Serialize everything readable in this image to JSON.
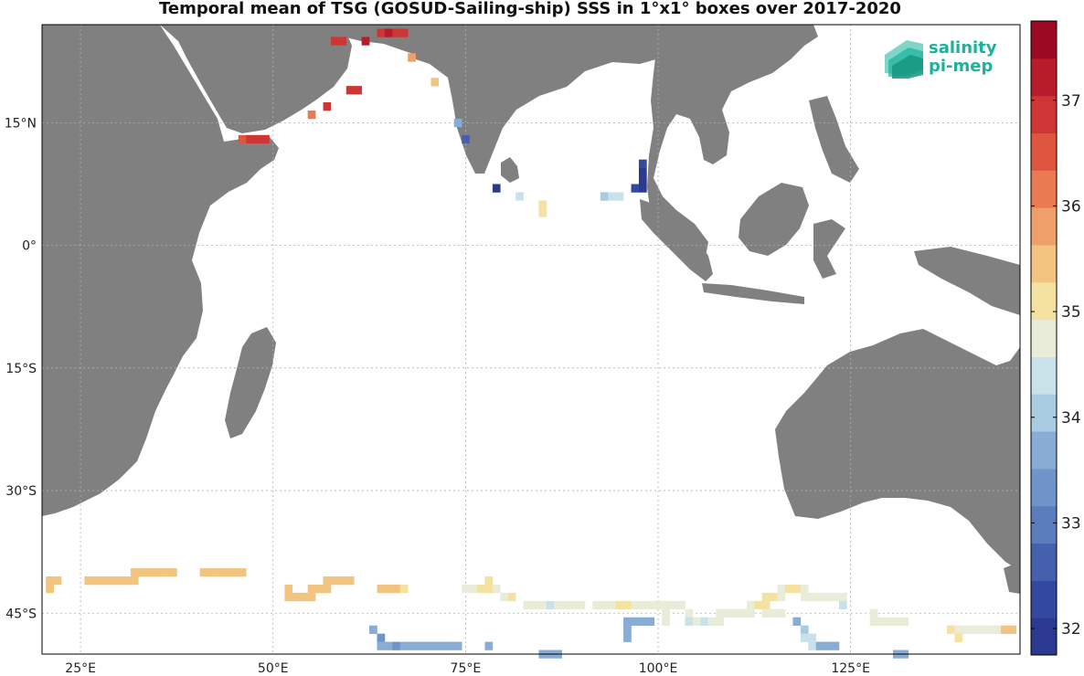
{
  "title": "Temporal mean of TSG (GOSUD-Sailing-ship) SSS in 1°x1° boxes over 2017-2020",
  "logo": {
    "line1": "salinity",
    "line2": "pi-mep",
    "color": "#1ab39a"
  },
  "axes": {
    "lon_range": [
      20,
      147
    ],
    "lat_range": [
      -50,
      27
    ],
    "x_ticks": [
      {
        "value": 25,
        "label": "25°E"
      },
      {
        "value": 50,
        "label": "50°E"
      },
      {
        "value": 75,
        "label": "75°E"
      },
      {
        "value": 100,
        "label": "100°E"
      },
      {
        "value": 125,
        "label": "125°E"
      }
    ],
    "y_ticks": [
      {
        "value": 15,
        "label": "15°N"
      },
      {
        "value": 0,
        "label": "0°"
      },
      {
        "value": -15,
        "label": "15°S"
      },
      {
        "value": -30,
        "label": "30°S"
      },
      {
        "value": -45,
        "label": "45°S"
      }
    ],
    "grid": true
  },
  "colorbar": {
    "min": 31.75,
    "max": 37.75,
    "ticks": [
      32,
      33,
      34,
      35,
      36,
      37
    ],
    "colors": [
      "#2b3990",
      "#3348a0",
      "#4561ad",
      "#5b7dbd",
      "#6e94c9",
      "#88acd4",
      "#a9cbe1",
      "#c9e2ea",
      "#e8ecd8",
      "#f5e2a0",
      "#f3c47f",
      "#ef9f6a",
      "#e97a51",
      "#de5640",
      "#cd3634",
      "#b71c2a",
      "#9b0a22"
    ]
  },
  "land_color": "#808080",
  "chart_data": {
    "type": "heatmap",
    "title": "Temporal mean of TSG (GOSUD-Sailing-ship) SSS in 1°x1° boxes over 2017-2020",
    "variable": "SSS",
    "xlabel": "",
    "ylabel": "",
    "xlim": [
      20,
      147
    ],
    "ylim": [
      -50,
      27
    ],
    "colorbar_range": [
      31.75,
      37.75
    ],
    "cells": [
      {
        "lon": 58,
        "lat": 25,
        "v": 37.0
      },
      {
        "lon": 59,
        "lat": 25,
        "v": 37.0
      },
      {
        "lon": 62,
        "lat": 25,
        "v": 37.1
      },
      {
        "lon": 64,
        "lat": 26,
        "v": 37.0
      },
      {
        "lon": 65,
        "lat": 26,
        "v": 37.1
      },
      {
        "lon": 66,
        "lat": 26,
        "v": 37.0
      },
      {
        "lon": 67,
        "lat": 26,
        "v": 37.0
      },
      {
        "lon": 60,
        "lat": 19,
        "v": 37.0
      },
      {
        "lon": 61,
        "lat": 19,
        "v": 37.0
      },
      {
        "lon": 57,
        "lat": 17,
        "v": 36.8
      },
      {
        "lon": 55,
        "lat": 16,
        "v": 36.3
      },
      {
        "lon": 46,
        "lat": 13,
        "v": 36.6
      },
      {
        "lon": 47,
        "lat": 13,
        "v": 36.7
      },
      {
        "lon": 48,
        "lat": 13,
        "v": 36.7
      },
      {
        "lon": 49,
        "lat": 13,
        "v": 36.8
      },
      {
        "lon": 68,
        "lat": 23,
        "v": 35.7
      },
      {
        "lon": 71,
        "lat": 20,
        "v": 35.3
      },
      {
        "lon": 74,
        "lat": 15,
        "v": 33.8
      },
      {
        "lon": 75,
        "lat": 13,
        "v": 32.7
      },
      {
        "lon": 79,
        "lat": 7,
        "v": 32.0
      },
      {
        "lon": 82,
        "lat": 6,
        "v": 34.3
      },
      {
        "lon": 85,
        "lat": 5,
        "v": 35.0
      },
      {
        "lon": 85,
        "lat": 4,
        "v": 35.1
      },
      {
        "lon": 93,
        "lat": 6,
        "v": 34.2
      },
      {
        "lon": 94,
        "lat": 6,
        "v": 34.4
      },
      {
        "lon": 95,
        "lat": 6,
        "v": 34.5
      },
      {
        "lon": 97,
        "lat": 7,
        "v": 32.3
      },
      {
        "lon": 98,
        "lat": 7,
        "v": 32.1
      },
      {
        "lon": 98,
        "lat": 8,
        "v": 32.0
      },
      {
        "lon": 98,
        "lat": 9,
        "v": 32.1
      },
      {
        "lon": 98,
        "lat": 10,
        "v": 32.2
      },
      {
        "lon": 21,
        "lat": -41,
        "v": 35.5
      },
      {
        "lon": 22,
        "lat": -41,
        "v": 35.5
      },
      {
        "lon": 21,
        "lat": -42,
        "v": 35.3
      },
      {
        "lon": 26,
        "lat": -41,
        "v": 35.6
      },
      {
        "lon": 27,
        "lat": -41,
        "v": 35.6
      },
      {
        "lon": 28,
        "lat": -41,
        "v": 35.6
      },
      {
        "lon": 29,
        "lat": -41,
        "v": 35.6
      },
      {
        "lon": 30,
        "lat": -41,
        "v": 35.5
      },
      {
        "lon": 31,
        "lat": -41,
        "v": 35.5
      },
      {
        "lon": 32,
        "lat": -41,
        "v": 35.5
      },
      {
        "lon": 32,
        "lat": -40,
        "v": 35.5
      },
      {
        "lon": 33,
        "lat": -40,
        "v": 35.4
      },
      {
        "lon": 34,
        "lat": -40,
        "v": 35.4
      },
      {
        "lon": 35,
        "lat": -40,
        "v": 35.6
      },
      {
        "lon": 36,
        "lat": -40,
        "v": 35.5
      },
      {
        "lon": 37,
        "lat": -40,
        "v": 35.4
      },
      {
        "lon": 41,
        "lat": -40,
        "v": 35.3
      },
      {
        "lon": 42,
        "lat": -40,
        "v": 35.4
      },
      {
        "lon": 43,
        "lat": -40,
        "v": 35.5
      },
      {
        "lon": 44,
        "lat": -40,
        "v": 35.6
      },
      {
        "lon": 45,
        "lat": -40,
        "v": 35.4
      },
      {
        "lon": 46,
        "lat": -40,
        "v": 35.3
      },
      {
        "lon": 52,
        "lat": -42,
        "v": 35.3
      },
      {
        "lon": 52,
        "lat": -43,
        "v": 35.4
      },
      {
        "lon": 53,
        "lat": -43,
        "v": 35.5
      },
      {
        "lon": 54,
        "lat": -43,
        "v": 35.4
      },
      {
        "lon": 55,
        "lat": -43,
        "v": 35.3
      },
      {
        "lon": 55,
        "lat": -42,
        "v": 35.5
      },
      {
        "lon": 56,
        "lat": -42,
        "v": 35.4
      },
      {
        "lon": 57,
        "lat": -42,
        "v": 35.3
      },
      {
        "lon": 57,
        "lat": -41,
        "v": 35.3
      },
      {
        "lon": 58,
        "lat": -41,
        "v": 35.4
      },
      {
        "lon": 59,
        "lat": -41,
        "v": 35.5
      },
      {
        "lon": 60,
        "lat": -41,
        "v": 35.3
      },
      {
        "lon": 64,
        "lat": -42,
        "v": 35.6
      },
      {
        "lon": 65,
        "lat": -42,
        "v": 35.4
      },
      {
        "lon": 66,
        "lat": -42,
        "v": 35.3
      },
      {
        "lon": 67,
        "lat": -42,
        "v": 35.1
      },
      {
        "lon": 75,
        "lat": -42,
        "v": 34.9
      },
      {
        "lon": 76,
        "lat": -42,
        "v": 34.9
      },
      {
        "lon": 77,
        "lat": -42,
        "v": 35.0
      },
      {
        "lon": 78,
        "lat": -42,
        "v": 35.0
      },
      {
        "lon": 78,
        "lat": -41,
        "v": 35.0
      },
      {
        "lon": 79,
        "lat": -42,
        "v": 34.9
      },
      {
        "lon": 80,
        "lat": -43,
        "v": 34.9
      },
      {
        "lon": 81,
        "lat": -43,
        "v": 35.0
      },
      {
        "lon": 83,
        "lat": -44,
        "v": 34.9
      },
      {
        "lon": 84,
        "lat": -44,
        "v": 34.9
      },
      {
        "lon": 85,
        "lat": -44,
        "v": 34.7
      },
      {
        "lon": 86,
        "lat": -44,
        "v": 34.4
      },
      {
        "lon": 87,
        "lat": -44,
        "v": 34.6
      },
      {
        "lon": 88,
        "lat": -44,
        "v": 34.7
      },
      {
        "lon": 89,
        "lat": -44,
        "v": 34.7
      },
      {
        "lon": 90,
        "lat": -44,
        "v": 34.8
      },
      {
        "lon": 92,
        "lat": -44,
        "v": 34.9
      },
      {
        "lon": 93,
        "lat": -44,
        "v": 34.9
      },
      {
        "lon": 94,
        "lat": -44,
        "v": 34.9
      },
      {
        "lon": 95,
        "lat": -44,
        "v": 35.0
      },
      {
        "lon": 96,
        "lat": -44,
        "v": 35.0
      },
      {
        "lon": 97,
        "lat": -44,
        "v": 34.9
      },
      {
        "lon": 98,
        "lat": -44,
        "v": 34.9
      },
      {
        "lon": 99,
        "lat": -44,
        "v": 34.9
      },
      {
        "lon": 100,
        "lat": -44,
        "v": 34.9
      },
      {
        "lon": 101,
        "lat": -44,
        "v": 34.9
      },
      {
        "lon": 102,
        "lat": -44,
        "v": 34.9
      },
      {
        "lon": 103,
        "lat": -44,
        "v": 34.9
      },
      {
        "lon": 101,
        "lat": -45,
        "v": 34.8
      },
      {
        "lon": 101,
        "lat": -46,
        "v": 34.7
      },
      {
        "lon": 104,
        "lat": -45,
        "v": 34.6
      },
      {
        "lon": 104,
        "lat": -46,
        "v": 34.5
      },
      {
        "lon": 105,
        "lat": -46,
        "v": 34.6
      },
      {
        "lon": 106,
        "lat": -46,
        "v": 34.5
      },
      {
        "lon": 107,
        "lat": -46,
        "v": 34.6
      },
      {
        "lon": 108,
        "lat": -46,
        "v": 34.7
      },
      {
        "lon": 108,
        "lat": -45,
        "v": 34.6
      },
      {
        "lon": 109,
        "lat": -45,
        "v": 34.6
      },
      {
        "lon": 110,
        "lat": -45,
        "v": 34.7
      },
      {
        "lon": 111,
        "lat": -45,
        "v": 34.7
      },
      {
        "lon": 112,
        "lat": -45,
        "v": 34.8
      },
      {
        "lon": 112,
        "lat": -44,
        "v": 34.9
      },
      {
        "lon": 113,
        "lat": -44,
        "v": 35.0
      },
      {
        "lon": 114,
        "lat": -44,
        "v": 35.0
      },
      {
        "lon": 114,
        "lat": -45,
        "v": 34.6
      },
      {
        "lon": 115,
        "lat": -45,
        "v": 34.7
      },
      {
        "lon": 116,
        "lat": -45,
        "v": 34.6
      },
      {
        "lon": 114,
        "lat": -43,
        "v": 35.0
      },
      {
        "lon": 115,
        "lat": -43,
        "v": 35.0
      },
      {
        "lon": 116,
        "lat": -42,
        "v": 34.9
      },
      {
        "lon": 116,
        "lat": -43,
        "v": 34.9
      },
      {
        "lon": 117,
        "lat": -42,
        "v": 35.0
      },
      {
        "lon": 118,
        "lat": -42,
        "v": 35.0
      },
      {
        "lon": 119,
        "lat": -42,
        "v": 34.9
      },
      {
        "lon": 119,
        "lat": -43,
        "v": 34.9
      },
      {
        "lon": 120,
        "lat": -43,
        "v": 34.9
      },
      {
        "lon": 121,
        "lat": -43,
        "v": 34.6
      },
      {
        "lon": 122,
        "lat": -43,
        "v": 34.6
      },
      {
        "lon": 123,
        "lat": -43,
        "v": 34.6
      },
      {
        "lon": 124,
        "lat": -43,
        "v": 34.6
      },
      {
        "lon": 124,
        "lat": -44,
        "v": 34.5
      },
      {
        "lon": 128,
        "lat": -45,
        "v": 34.6
      },
      {
        "lon": 128,
        "lat": -46,
        "v": 34.7
      },
      {
        "lon": 129,
        "lat": -46,
        "v": 34.7
      },
      {
        "lon": 130,
        "lat": -46,
        "v": 34.7
      },
      {
        "lon": 131,
        "lat": -46,
        "v": 34.6
      },
      {
        "lon": 132,
        "lat": -46,
        "v": 34.7
      },
      {
        "lon": 138,
        "lat": -47,
        "v": 35.0
      },
      {
        "lon": 139,
        "lat": -47,
        "v": 34.9
      },
      {
        "lon": 140,
        "lat": -47,
        "v": 34.8
      },
      {
        "lon": 141,
        "lat": -47,
        "v": 34.8
      },
      {
        "lon": 142,
        "lat": -47,
        "v": 34.7
      },
      {
        "lon": 143,
        "lat": -47,
        "v": 34.6
      },
      {
        "lon": 144,
        "lat": -47,
        "v": 34.7
      },
      {
        "lon": 145,
        "lat": -47,
        "v": 35.3
      },
      {
        "lon": 146,
        "lat": -47,
        "v": 35.4
      },
      {
        "lon": 139,
        "lat": -48,
        "v": 35.0
      },
      {
        "lon": 63,
        "lat": -47,
        "v": 33.6
      },
      {
        "lon": 64,
        "lat": -48,
        "v": 33.5
      },
      {
        "lon": 64,
        "lat": -49,
        "v": 33.6
      },
      {
        "lon": 65,
        "lat": -49,
        "v": 33.6
      },
      {
        "lon": 66,
        "lat": -49,
        "v": 33.5
      },
      {
        "lon": 67,
        "lat": -49,
        "v": 33.6
      },
      {
        "lon": 68,
        "lat": -49,
        "v": 33.6
      },
      {
        "lon": 69,
        "lat": -49,
        "v": 33.6
      },
      {
        "lon": 70,
        "lat": -49,
        "v": 33.7
      },
      {
        "lon": 71,
        "lat": -49,
        "v": 33.8
      },
      {
        "lon": 72,
        "lat": -49,
        "v": 33.8
      },
      {
        "lon": 73,
        "lat": -49,
        "v": 33.7
      },
      {
        "lon": 74,
        "lat": -49,
        "v": 33.6
      },
      {
        "lon": 78,
        "lat": -49,
        "v": 33.7
      },
      {
        "lon": 85,
        "lat": -50,
        "v": 33.7
      },
      {
        "lon": 86,
        "lat": -50,
        "v": 33.8
      },
      {
        "lon": 87,
        "lat": -50,
        "v": 33.8
      },
      {
        "lon": 96,
        "lat": -46,
        "v": 33.8
      },
      {
        "lon": 97,
        "lat": -46,
        "v": 33.7
      },
      {
        "lon": 98,
        "lat": -46,
        "v": 33.8
      },
      {
        "lon": 99,
        "lat": -46,
        "v": 33.8
      },
      {
        "lon": 96,
        "lat": -47,
        "v": 33.7
      },
      {
        "lon": 96,
        "lat": -48,
        "v": 33.6
      },
      {
        "lon": 118,
        "lat": -46,
        "v": 33.8
      },
      {
        "lon": 119,
        "lat": -47,
        "v": 34.1
      },
      {
        "lon": 119,
        "lat": -48,
        "v": 34.3
      },
      {
        "lon": 120,
        "lat": -48,
        "v": 34.3
      },
      {
        "lon": 120,
        "lat": -49,
        "v": 34.3
      },
      {
        "lon": 121,
        "lat": -49,
        "v": 33.7
      },
      {
        "lon": 122,
        "lat": -49,
        "v": 33.7
      },
      {
        "lon": 123,
        "lat": -49,
        "v": 33.8
      },
      {
        "lon": 131,
        "lat": -50,
        "v": 33.8
      },
      {
        "lon": 132,
        "lat": -50,
        "v": 33.7
      }
    ]
  }
}
